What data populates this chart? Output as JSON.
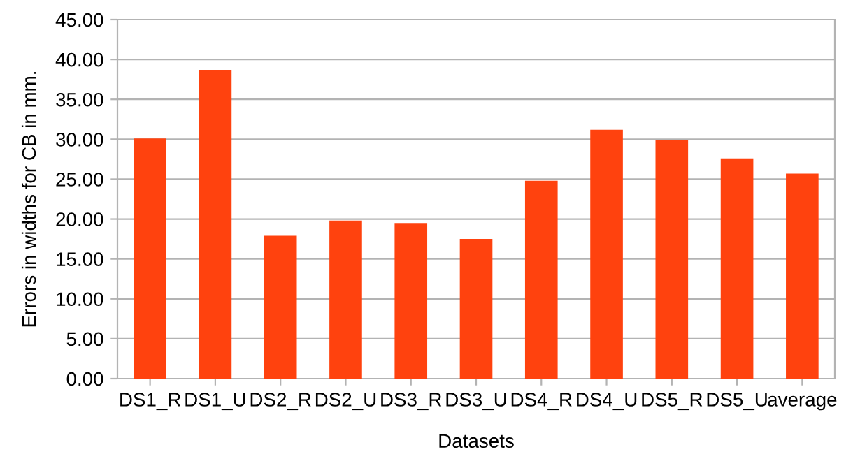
{
  "chart_data": {
    "type": "bar",
    "xlabel": "Datasets",
    "ylabel": "Errors in widths for CB in mm.",
    "categories": [
      "DS1_R",
      "DS1_U",
      "DS2_R",
      "DS2_U",
      "DS3_R",
      "DS3_U",
      "DS4_R",
      "DS4_U",
      "DS5_R",
      "DS5_U",
      "average"
    ],
    "values": [
      30.1,
      38.7,
      17.9,
      19.8,
      19.5,
      17.5,
      24.8,
      31.2,
      29.9,
      27.6,
      25.7
    ],
    "color": "#ff420e",
    "ylim": [
      0,
      45
    ],
    "yticks": [
      {
        "value": 0,
        "label": "0.00"
      },
      {
        "value": 5,
        "label": "5.00"
      },
      {
        "value": 10,
        "label": "10.00"
      },
      {
        "value": 15,
        "label": "15.00"
      },
      {
        "value": 20,
        "label": "20.00"
      },
      {
        "value": 25,
        "label": "25.00"
      },
      {
        "value": 30,
        "label": "30.00"
      },
      {
        "value": 35,
        "label": "35.00"
      },
      {
        "value": 40,
        "label": "40.00"
      },
      {
        "value": 45,
        "label": "45.00"
      }
    ],
    "grid": "y"
  }
}
